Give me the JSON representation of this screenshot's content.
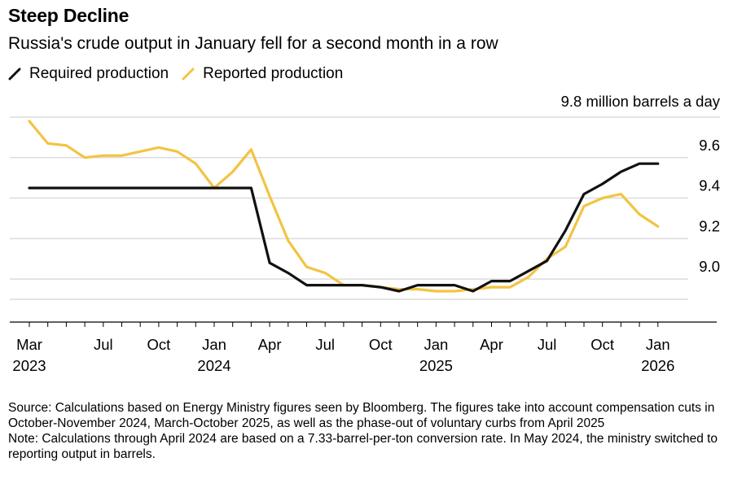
{
  "header": {
    "title": "Steep Decline",
    "subtitle": "Russia's crude output in January fell for a second month in a row"
  },
  "legend": {
    "items": [
      {
        "label": "Required production",
        "color": "#111111"
      },
      {
        "label": "Reported production",
        "color": "#F2C442"
      }
    ]
  },
  "notes": {
    "source": "Source: Calculations based on Energy Ministry figures seen by Bloomberg. The figures take into account compensation cuts in October-November 2024, March-October 2025, as well as the phase-out of voluntary curbs from April 2025",
    "note": "Note: Calculations through April 2024 are based on a 7.33-barrel-per-ton conversion rate. In May 2024, the ministry switched to reporting output in barrels."
  },
  "chart_data": {
    "type": "line",
    "unit_label": "9.8 million barrels a day",
    "ylim": [
      8.9,
      9.8
    ],
    "yticks": [
      9.0,
      9.2,
      9.4,
      9.6
    ],
    "grid": true,
    "legend_position": "top-left",
    "x": [
      "2023-03",
      "2023-04",
      "2023-05",
      "2023-06",
      "2023-07",
      "2023-08",
      "2023-09",
      "2023-10",
      "2023-11",
      "2023-12",
      "2024-01",
      "2024-02",
      "2024-03",
      "2024-04",
      "2024-05",
      "2024-06",
      "2024-07",
      "2024-08",
      "2024-09",
      "2024-10",
      "2024-11",
      "2024-12",
      "2025-01",
      "2025-02",
      "2025-03",
      "2025-04",
      "2025-05",
      "2025-06",
      "2025-07",
      "2025-08",
      "2025-09",
      "2025-10",
      "2025-11",
      "2025-12",
      "2026-01"
    ],
    "xticks": [
      {
        "x": "2023-03",
        "label": "Mar",
        "year": "2023"
      },
      {
        "x": "2023-07",
        "label": "Jul",
        "year": ""
      },
      {
        "x": "2023-10",
        "label": "Oct",
        "year": ""
      },
      {
        "x": "2024-01",
        "label": "Jan",
        "year": "2024"
      },
      {
        "x": "2024-04",
        "label": "Apr",
        "year": ""
      },
      {
        "x": "2024-07",
        "label": "Jul",
        "year": ""
      },
      {
        "x": "2024-10",
        "label": "Oct",
        "year": ""
      },
      {
        "x": "2025-01",
        "label": "Jan",
        "year": "2025"
      },
      {
        "x": "2025-04",
        "label": "Apr",
        "year": ""
      },
      {
        "x": "2025-07",
        "label": "Jul",
        "year": ""
      },
      {
        "x": "2025-10",
        "label": "Oct",
        "year": ""
      },
      {
        "x": "2026-01",
        "label": "Jan",
        "year": "2026"
      }
    ],
    "series": [
      {
        "name": "Reported production",
        "color": "#F2C442",
        "start": "2023-03",
        "values": [
          9.78,
          9.67,
          9.66,
          9.6,
          9.61,
          9.61,
          9.63,
          9.65,
          9.63,
          9.57,
          9.45,
          9.53,
          9.64,
          9.41,
          9.19,
          9.06,
          9.03,
          8.97,
          8.97,
          8.96,
          8.95,
          8.95,
          8.94,
          8.94,
          8.95,
          8.96,
          8.96,
          9.01,
          9.1,
          9.16,
          9.36,
          9.4,
          9.42,
          9.32,
          9.26
        ]
      },
      {
        "name": "Required production",
        "color": "#111111",
        "start": "2023-03",
        "values": [
          9.45,
          9.45,
          9.45,
          9.45,
          9.45,
          9.45,
          9.45,
          9.45,
          9.45,
          9.45,
          9.45,
          9.45,
          9.45,
          9.08,
          9.03,
          8.97,
          8.97,
          8.97,
          8.97,
          8.96,
          8.94,
          8.97,
          8.97,
          8.97,
          8.94,
          8.99,
          8.99,
          9.04,
          9.09,
          9.24,
          9.42,
          9.47,
          9.53,
          9.57,
          9.57
        ]
      }
    ]
  }
}
